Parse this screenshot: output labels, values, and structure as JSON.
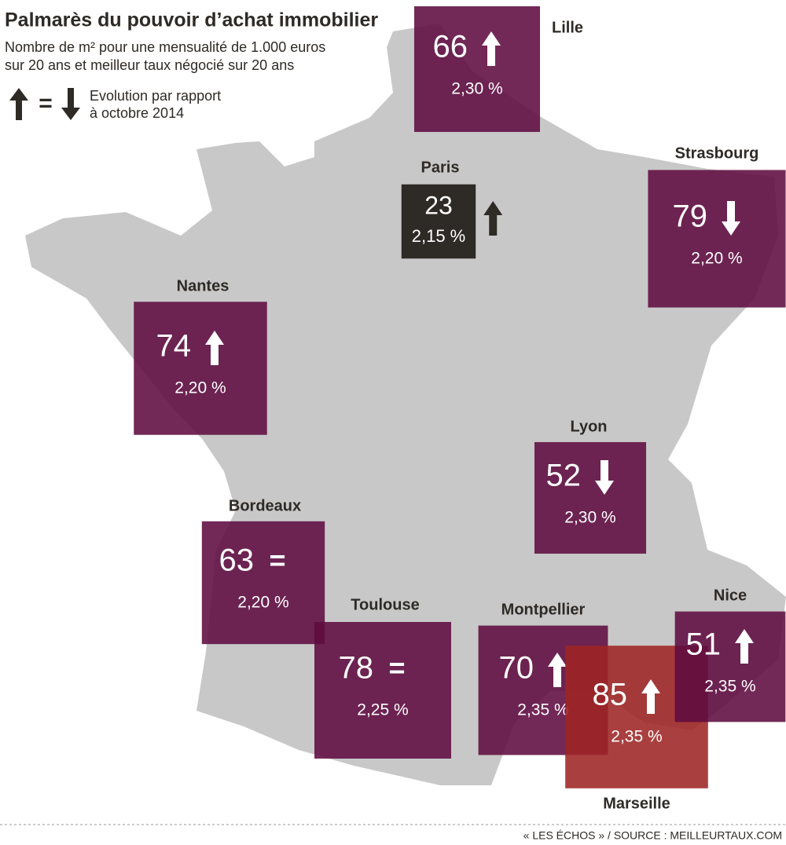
{
  "header": {
    "title": "Palmarès du pouvoir d’achat immobilier",
    "subtitle": [
      "Nombre de m² pour une mensualité de 1.000 euros",
      "sur 20 ans et meilleur taux négocié sur 20 ans"
    ]
  },
  "legend": {
    "symbol": "=",
    "text": [
      "Evolution par rapport",
      "à octobre 2014"
    ]
  },
  "cities": [
    {
      "name": "Lille",
      "value": 66,
      "rate": "2,30 %",
      "trend": "up",
      "color": "#5e0b40"
    },
    {
      "name": "Paris",
      "value": 23,
      "rate": "2,15 %",
      "trend": "up",
      "color": "#2e2a26"
    },
    {
      "name": "Strasbourg",
      "value": 79,
      "rate": "2,20 %",
      "trend": "down",
      "color": "#5e0b40"
    },
    {
      "name": "Nantes",
      "value": 74,
      "rate": "2,20 %",
      "trend": "up",
      "color": "#5e0b40"
    },
    {
      "name": "Lyon",
      "value": 52,
      "rate": "2,30 %",
      "trend": "down",
      "color": "#5e0b40"
    },
    {
      "name": "Bordeaux",
      "value": 63,
      "rate": "2,20 %",
      "trend": "=",
      "color": "#5e0b40"
    },
    {
      "name": "Toulouse",
      "value": 78,
      "rate": "2,25 %",
      "trend": "=",
      "color": "#5e0b40"
    },
    {
      "name": "Montpellier",
      "value": 70,
      "rate": "2,35 %",
      "trend": "up",
      "color": "#5e0b40"
    },
    {
      "name": "Marseille",
      "value": 85,
      "rate": "2,35 %",
      "trend": "up",
      "color": "#9e2424"
    },
    {
      "name": "Nice",
      "value": 51,
      "rate": "2,35 %",
      "trend": "up",
      "color": "#5e0b40"
    }
  ],
  "source": "« LES ÉCHOS » / SOURCE : MEILLEURTAUX.COM"
}
